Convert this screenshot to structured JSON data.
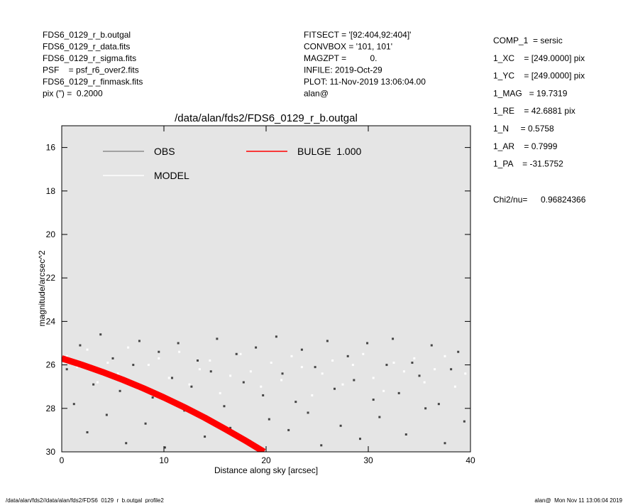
{
  "header": {
    "left": [
      "FDS6_0129_r_b.outgal",
      "FDS6_0129_r_data.fits",
      "FDS6_0129_r_sigma.fits",
      "PSF    = psf_r6_over2.fits",
      "FDS6_0129_r_finmask.fits",
      "pix (\") =  0.2000"
    ],
    "middle": [
      "FITSECT = '[92:404,92:404]'",
      "CONVBOX = '101, 101'",
      "MAGZPT =          0.",
      "INFILE: 2019-Oct-29",
      "PLOT: 11-Nov-2019 13:06:04.00",
      "alan@"
    ],
    "right": [
      "COMP_1  = sersic",
      "1_XC    = [249.0000] pix",
      "1_YC    = [249.0000] pix",
      "1_MAG   = 19.7319",
      "1_RE    = 42.6881 pix",
      "1_N     = 0.5758",
      "1_AR    = 0.7999",
      "1_PA    = -31.5752"
    ],
    "chi_label": "Chi2/nu=",
    "chi_value": "0.96824366"
  },
  "footer": {
    "left": "/data/alan/fds2//data/alan/fds2/FDS6_0129_r_b.outgal_profile2",
    "right": "alan@  Mon Nov 11 13:06:04 2019"
  },
  "chart_data": {
    "type": "scatter",
    "title": "/data/alan/fds2/FDS6_0129_r_b.outgal",
    "xlabel": "Distance along sky [arcsec]",
    "ylabel": "magnitude/arcsec^2",
    "xlim": [
      0,
      40
    ],
    "xticks": [
      0,
      10,
      20,
      30,
      40
    ],
    "ylim": [
      30,
      15
    ],
    "yticks": [
      16,
      18,
      20,
      22,
      24,
      26,
      28,
      30
    ],
    "background": "#e5e5e5",
    "series": [
      {
        "name": "OBS",
        "color": "#444444",
        "legend_color": "#8c8c8c",
        "kind": "points",
        "x": [
          0.5,
          1.2,
          1.8,
          2.5,
          3.1,
          3.8,
          4.4,
          5.0,
          5.7,
          6.3,
          7.0,
          7.6,
          8.2,
          8.9,
          9.5,
          10.1,
          10.8,
          11.4,
          12.0,
          12.7,
          13.3,
          14.0,
          14.6,
          15.2,
          15.9,
          16.5,
          17.1,
          17.8,
          18.4,
          19.0,
          19.7,
          20.3,
          21.0,
          21.6,
          22.2,
          22.9,
          23.5,
          24.1,
          24.8,
          25.4,
          26.0,
          26.7,
          27.3,
          28.0,
          28.6,
          29.2,
          29.9,
          30.5,
          31.1,
          31.8,
          32.4,
          33.0,
          33.7,
          34.3,
          35.0,
          35.6,
          36.2,
          36.9,
          37.5,
          38.1,
          38.8,
          39.4
        ],
        "values": [
          26.2,
          27.8,
          25.1,
          29.1,
          26.9,
          24.6,
          28.3,
          25.7,
          27.2,
          29.6,
          26.0,
          24.9,
          28.7,
          27.5,
          25.4,
          29.8,
          26.6,
          25.0,
          28.1,
          27.0,
          25.8,
          29.3,
          26.3,
          24.8,
          27.9,
          28.9,
          25.5,
          26.8,
          29.5,
          25.2,
          27.4,
          28.5,
          24.7,
          26.4,
          29.0,
          27.7,
          25.3,
          28.2,
          26.1,
          29.7,
          24.9,
          27.1,
          28.8,
          25.6,
          26.7,
          29.4,
          25.0,
          27.6,
          28.4,
          26.0,
          24.8,
          27.3,
          29.2,
          25.9,
          26.5,
          28.0,
          25.1,
          27.8,
          29.6,
          26.2,
          25.4,
          28.6
        ]
      },
      {
        "name": "MODEL",
        "color": "#ffffff",
        "legend_color": "#ffffff",
        "kind": "points",
        "x": [
          0.5,
          1.5,
          2.5,
          3.5,
          4.5,
          5.5,
          6.5,
          7.5,
          8.5,
          9.5,
          10.5,
          11.5,
          12.5,
          13.5,
          14.5,
          15.5,
          16.5,
          17.5,
          18.5,
          19.5,
          20.5,
          21.5,
          22.5,
          23.5,
          24.5,
          25.5,
          26.5,
          27.5,
          28.5,
          29.5,
          30.5,
          31.5,
          32.5,
          33.5,
          34.5,
          35.5,
          36.5,
          37.5,
          38.5,
          39.5
        ],
        "values": [
          25.6,
          26.1,
          25.3,
          26.8,
          25.9,
          26.4,
          25.2,
          27.1,
          26.0,
          25.7,
          26.6,
          25.4,
          26.9,
          26.2,
          25.8,
          27.3,
          26.5,
          25.5,
          26.3,
          27.0,
          25.9,
          26.7,
          25.6,
          26.1,
          27.4,
          26.4,
          25.8,
          26.9,
          26.0,
          25.5,
          26.6,
          27.2,
          25.9,
          26.3,
          25.7,
          26.8,
          26.2,
          25.6,
          27.0,
          26.4
        ]
      },
      {
        "name": "BULGE  1.000",
        "color": "#ff0000",
        "legend_color": "#ff0000",
        "kind": "line",
        "x": [
          0,
          2,
          4,
          6,
          8,
          10,
          12,
          14,
          16,
          18,
          19.8
        ],
        "values": [
          25.7,
          26.0,
          26.33,
          26.69,
          27.08,
          27.5,
          27.95,
          28.43,
          28.95,
          29.49,
          30.0
        ]
      }
    ]
  }
}
